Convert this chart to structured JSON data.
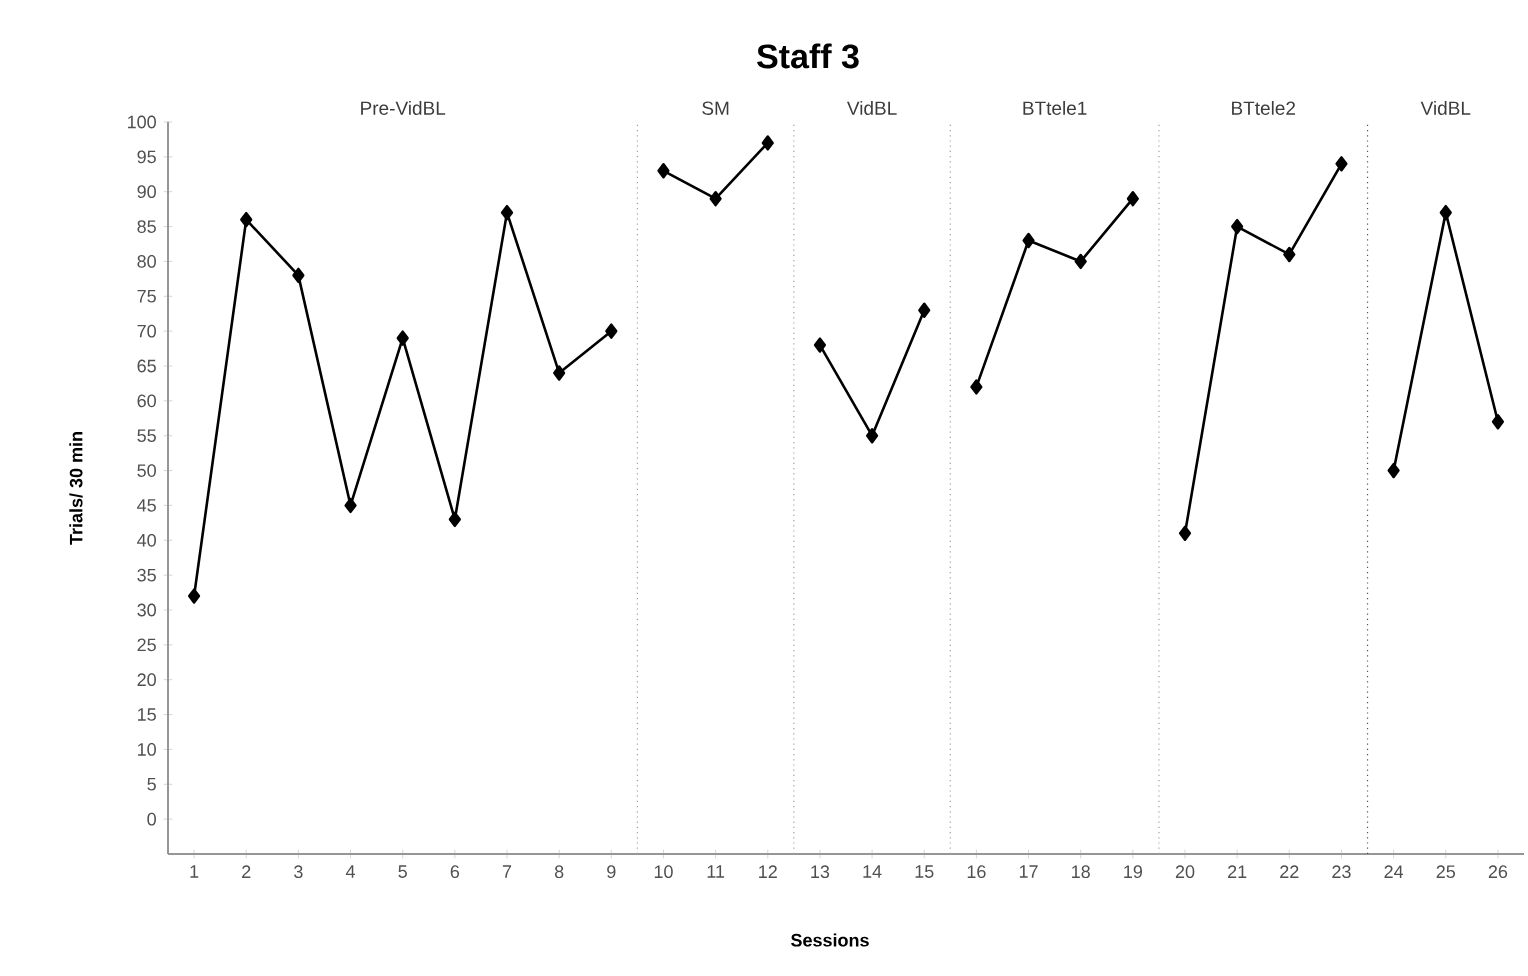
{
  "chart_data": {
    "type": "line",
    "title": "Staff 3",
    "xlabel": "Sessions",
    "ylabel": "Trials/ 30 min",
    "xlim": [
      0.5,
      26.5
    ],
    "xticks": [
      1,
      2,
      3,
      4,
      5,
      6,
      7,
      8,
      9,
      10,
      11,
      12,
      13,
      14,
      15,
      16,
      17,
      18,
      19,
      20,
      21,
      22,
      23,
      24,
      25,
      26
    ],
    "ylim": [
      -5,
      100
    ],
    "yticks": [
      0,
      5,
      10,
      15,
      20,
      25,
      30,
      35,
      40,
      45,
      50,
      55,
      60,
      65,
      70,
      75,
      80,
      85,
      90,
      95,
      100
    ],
    "marker": "diamond",
    "line_style": "solid",
    "grid": false,
    "series": [
      {
        "color": "#000000",
        "x": [
          1,
          2,
          3,
          4,
          5,
          6,
          7,
          8,
          9
        ],
        "values": [
          32,
          86,
          78,
          45,
          69,
          43,
          87,
          64,
          70
        ]
      },
      {
        "color": "#000000",
        "x": [
          10,
          11,
          12
        ],
        "values": [
          93,
          89,
          97
        ]
      },
      {
        "color": "#000000",
        "x": [
          13,
          14,
          15
        ],
        "values": [
          68,
          55,
          73
        ]
      },
      {
        "color": "#000000",
        "x": [
          16,
          17,
          18,
          19
        ],
        "values": [
          62,
          83,
          80,
          89
        ]
      },
      {
        "color": "#000000",
        "x": [
          20,
          21,
          22,
          23
        ],
        "values": [
          41,
          85,
          81,
          94
        ]
      },
      {
        "color": "#000000",
        "x": [
          24,
          25,
          26
        ],
        "values": [
          50,
          87,
          57
        ]
      }
    ],
    "ref_lines": [
      {
        "axis": "x",
        "value": 9.5,
        "color": "#a0a0a0",
        "line_style": "dotted"
      },
      {
        "axis": "x",
        "value": 12.5,
        "color": "#a0a0a0",
        "line_style": "dotted"
      },
      {
        "axis": "x",
        "value": 15.5,
        "color": "#a0a0a0",
        "line_style": "dotted"
      },
      {
        "axis": "x",
        "value": 19.5,
        "color": "#a0a0a0",
        "line_style": "dotted"
      },
      {
        "axis": "x",
        "value": 23.5,
        "color": "#505050",
        "line_style": "dotted"
      }
    ],
    "annotations": [
      "Pre-VidBL",
      "SM",
      "VidBL",
      "BTtele1",
      "BTtele2",
      "VidBL"
    ]
  }
}
